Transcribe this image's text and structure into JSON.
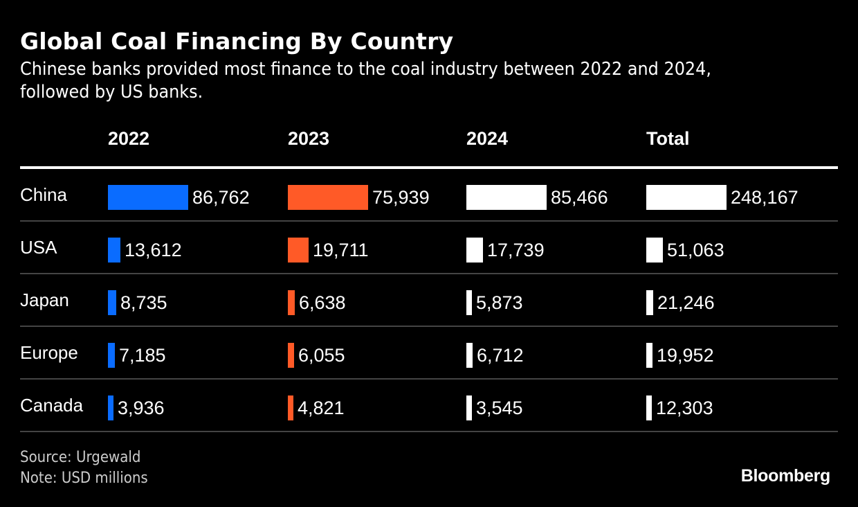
{
  "chart_data": {
    "type": "table",
    "title": "Global Coal Financing By Country",
    "subtitle": "Chinese banks provided most finance to the coal industry between 2022 and 2024, followed by US banks.",
    "columns": [
      "2022",
      "2023",
      "2024",
      "Total"
    ],
    "categories": [
      "China",
      "USA",
      "Japan",
      "Europe",
      "Canada"
    ],
    "series": [
      {
        "name": "2022",
        "color": "#0a6cff",
        "values": [
          86762,
          13612,
          8735,
          7185,
          3936
        ],
        "labels": [
          "86,762",
          "13,612",
          "8,735",
          "7,185",
          "3,936"
        ]
      },
      {
        "name": "2023",
        "color": "#ff5a27",
        "values": [
          75939,
          19711,
          6638,
          6055,
          4821
        ],
        "labels": [
          "75,939",
          "19,711",
          "6,638",
          "6,055",
          "4,821"
        ]
      },
      {
        "name": "2024",
        "color": "#ffffff",
        "values": [
          85466,
          17739,
          5873,
          6712,
          3545
        ],
        "labels": [
          "85,466",
          "17,739",
          "5,873",
          "6,712",
          "3,545"
        ]
      },
      {
        "name": "Total",
        "color": "#ffffff",
        "values": [
          248167,
          51063,
          21246,
          19952,
          12303
        ],
        "labels": [
          "248,167",
          "51,063",
          "21,246",
          "19,952",
          "12,303"
        ]
      }
    ],
    "unit": "USD millions"
  },
  "footer": {
    "source": "Source: Urgewald",
    "note": "Note: USD millions",
    "brand": "Bloomberg"
  }
}
